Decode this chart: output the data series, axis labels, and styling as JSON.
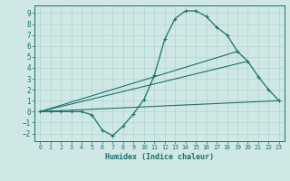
{
  "xlabel": "Humidex (Indice chaleur)",
  "xlim": [
    -0.5,
    23.5
  ],
  "ylim": [
    -2.7,
    9.7
  ],
  "xticks": [
    0,
    1,
    2,
    3,
    4,
    5,
    6,
    7,
    8,
    9,
    10,
    11,
    12,
    13,
    14,
    15,
    16,
    17,
    18,
    19,
    20,
    21,
    22,
    23
  ],
  "yticks": [
    -2,
    -1,
    0,
    1,
    2,
    3,
    4,
    5,
    6,
    7,
    8,
    9
  ],
  "bg_color": "#cfe8e5",
  "line_color": "#1a7070",
  "grid_color": "#b0d4d0",
  "curve1_x": [
    0,
    1,
    2,
    3,
    4,
    5,
    6,
    7,
    8,
    9,
    10,
    11,
    12,
    13,
    14,
    15,
    16,
    17,
    18,
    19,
    20,
    21,
    22,
    23
  ],
  "curve1_y": [
    0,
    0,
    0,
    0,
    0,
    -0.3,
    -1.7,
    -2.2,
    -1.3,
    -0.2,
    1.1,
    3.3,
    6.6,
    8.5,
    9.2,
    9.2,
    8.7,
    7.7,
    7.0,
    5.5,
    4.6,
    3.2,
    2.0,
    1.0
  ],
  "line2_x": [
    0,
    23
  ],
  "line2_y": [
    0,
    1.0
  ],
  "line3_x": [
    0,
    20
  ],
  "line3_y": [
    0,
    4.6
  ],
  "line4_x": [
    0,
    19
  ],
  "line4_y": [
    0,
    5.5
  ]
}
